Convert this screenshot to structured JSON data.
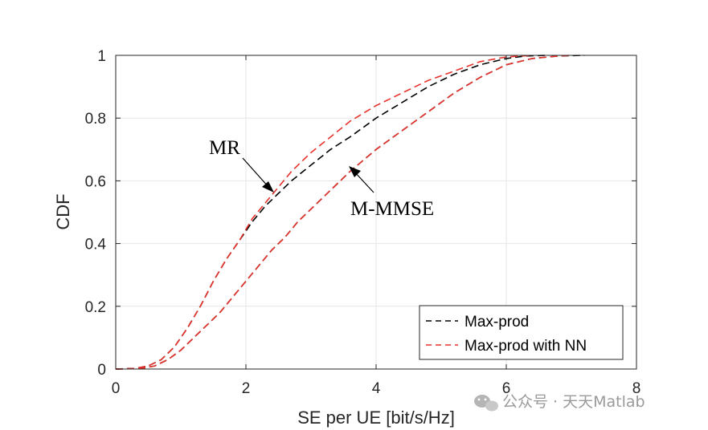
{
  "chart_data": {
    "type": "line",
    "xlabel": "SE per UE [bit/s/Hz]",
    "ylabel": "CDF",
    "xlim": [
      0,
      8
    ],
    "ylim": [
      0,
      1
    ],
    "x_ticks": [
      "0",
      "2",
      "4",
      "6",
      "8"
    ],
    "y_ticks": [
      "0",
      "0.2",
      "0.4",
      "0.6",
      "0.8",
      "1"
    ],
    "grid": true,
    "legend_position": "bottom-right",
    "legend": [
      {
        "label": "Max-prod",
        "color": "#000000",
        "style": "dashed"
      },
      {
        "label": "Max-prod with NN",
        "color": "#e8322b",
        "style": "dashed"
      }
    ],
    "annotations": [
      {
        "text": "MR",
        "points_to": [
          2.45,
          0.56
        ]
      },
      {
        "text": "M-MMSE",
        "points_to": [
          3.55,
          0.67
        ]
      }
    ],
    "series": [
      {
        "group": "MR",
        "legend_ref": "Max-prod",
        "color": "#000000",
        "style": "dashed",
        "x": [
          0,
          0.3,
          0.5,
          0.7,
          0.9,
          1.1,
          1.3,
          1.5,
          1.7,
          1.9,
          2.1,
          2.3,
          2.5,
          2.7,
          3.0,
          3.3,
          3.6,
          4.0,
          4.4,
          4.8,
          5.2,
          5.6,
          6.0,
          6.3,
          6.6
        ],
        "y": [
          0,
          0.002,
          0.01,
          0.03,
          0.07,
          0.13,
          0.2,
          0.28,
          0.35,
          0.41,
          0.47,
          0.52,
          0.56,
          0.6,
          0.65,
          0.7,
          0.74,
          0.8,
          0.85,
          0.9,
          0.94,
          0.97,
          0.99,
          0.998,
          1.0
        ]
      },
      {
        "group": "MR",
        "legend_ref": "Max-prod with NN",
        "color": "#e8322b",
        "style": "dashed",
        "x": [
          0,
          0.3,
          0.5,
          0.7,
          0.9,
          1.1,
          1.3,
          1.5,
          1.7,
          1.9,
          2.1,
          2.3,
          2.5,
          2.7,
          3.0,
          3.3,
          3.6,
          4.0,
          4.4,
          4.8,
          5.2,
          5.6,
          6.0,
          6.4
        ],
        "y": [
          0,
          0.002,
          0.01,
          0.03,
          0.07,
          0.13,
          0.2,
          0.28,
          0.35,
          0.41,
          0.48,
          0.53,
          0.58,
          0.63,
          0.69,
          0.74,
          0.79,
          0.84,
          0.88,
          0.92,
          0.95,
          0.98,
          0.995,
          1.0
        ]
      },
      {
        "group": "M-MMSE",
        "legend_ref": "Max-prod",
        "color": "#000000",
        "style": "dashed",
        "x": [
          0,
          0.4,
          0.6,
          0.8,
          1.0,
          1.2,
          1.4,
          1.6,
          1.8,
          2.0,
          2.2,
          2.4,
          2.6,
          2.8,
          3.0,
          3.3,
          3.6,
          4.0,
          4.4,
          4.8,
          5.2,
          5.6,
          6.0,
          6.4,
          6.8,
          7.2
        ],
        "y": [
          0,
          0.002,
          0.01,
          0.03,
          0.06,
          0.1,
          0.14,
          0.18,
          0.23,
          0.28,
          0.33,
          0.38,
          0.42,
          0.47,
          0.51,
          0.57,
          0.63,
          0.7,
          0.76,
          0.82,
          0.88,
          0.93,
          0.97,
          0.99,
          0.998,
          1.0
        ]
      },
      {
        "group": "M-MMSE",
        "legend_ref": "Max-prod with NN",
        "color": "#e8322b",
        "style": "dashed",
        "x": [
          0,
          0.4,
          0.6,
          0.8,
          1.0,
          1.2,
          1.4,
          1.6,
          1.8,
          2.0,
          2.2,
          2.4,
          2.6,
          2.8,
          3.0,
          3.3,
          3.6,
          4.0,
          4.4,
          4.8,
          5.2,
          5.6,
          6.0,
          6.4,
          6.8,
          7.0
        ],
        "y": [
          0,
          0.002,
          0.01,
          0.03,
          0.06,
          0.1,
          0.14,
          0.18,
          0.23,
          0.28,
          0.33,
          0.38,
          0.42,
          0.47,
          0.51,
          0.57,
          0.63,
          0.7,
          0.76,
          0.82,
          0.88,
          0.93,
          0.97,
          0.99,
          0.998,
          1.0
        ]
      }
    ]
  },
  "watermark": {
    "text": "公众号 · 天天Matlab"
  }
}
